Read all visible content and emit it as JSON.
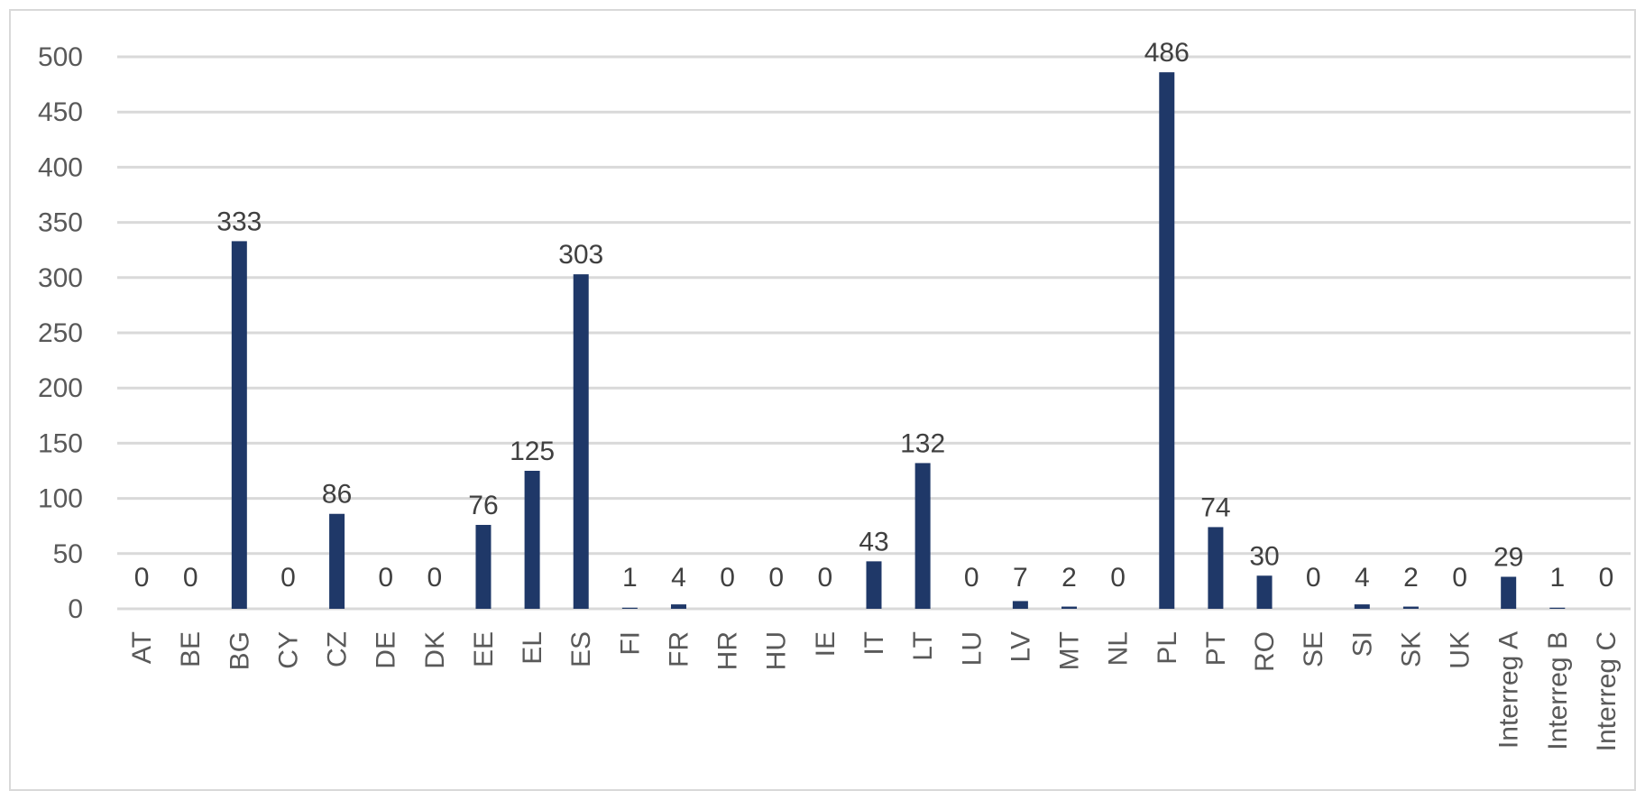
{
  "chart_data": {
    "type": "bar",
    "categories": [
      "AT",
      "BE",
      "BG",
      "CY",
      "CZ",
      "DE",
      "DK",
      "EE",
      "EL",
      "ES",
      "FI",
      "FR",
      "HR",
      "HU",
      "IE",
      "IT",
      "LT",
      "LU",
      "LV",
      "MT",
      "NL",
      "PL",
      "PT",
      "RO",
      "SE",
      "SI",
      "SK",
      "UK",
      "Interreg A",
      "Interreg B",
      "Interreg C"
    ],
    "values": [
      0,
      0,
      333,
      0,
      86,
      0,
      0,
      76,
      125,
      303,
      1,
      4,
      0,
      0,
      0,
      43,
      132,
      0,
      7,
      2,
      0,
      486,
      74,
      30,
      0,
      4,
      2,
      0,
      29,
      1,
      0
    ],
    "ylim": [
      0,
      500
    ],
    "yticks": [
      0,
      50,
      100,
      150,
      200,
      250,
      300,
      350,
      400,
      450,
      500
    ],
    "grid": true,
    "bar_color": "#1f3868",
    "legend": "none"
  }
}
